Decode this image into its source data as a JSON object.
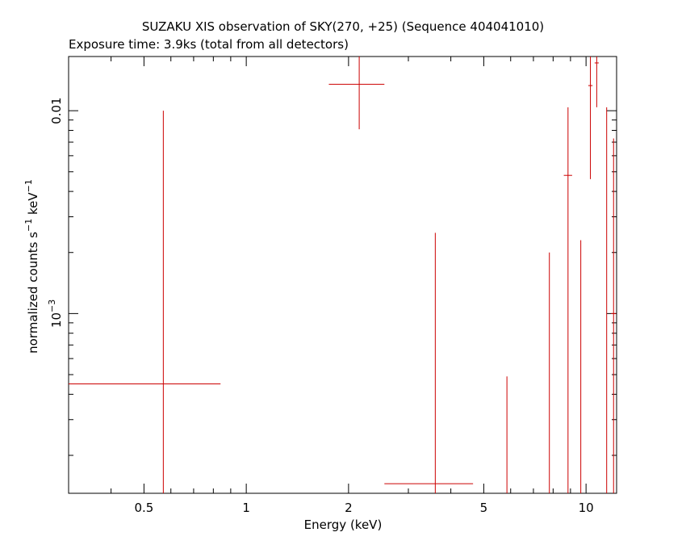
{
  "title": "SUZAKU XIS observation of SKY(270, +25) (Sequence 404041010)",
  "subtitle": "Exposure time: 3.9ks (total from all detectors)",
  "chart_data": {
    "type": "scatter",
    "xlabel": "Energy (keV)",
    "ylabel_main": "normalized counts s",
    "ylabel_exp1": "−1",
    "ylabel_mid": " keV",
    "ylabel_exp2": "−1",
    "xscale": "log",
    "yscale": "log",
    "xlim": [
      0.3,
      12.3
    ],
    "ylim": [
      0.00013,
      0.0185
    ],
    "x_major_ticks": [
      0.5,
      1,
      2,
      5,
      10
    ],
    "x_tick_labels": [
      "0.5",
      "1",
      "2",
      "5",
      "10"
    ],
    "x_minor_ticks": [
      0.3,
      0.4,
      0.6,
      0.7,
      0.8,
      0.9,
      3,
      4,
      6,
      7,
      8,
      9
    ],
    "y_major_ticks": [
      0.001,
      0.01
    ],
    "y_minor_ticks": [
      0.0002,
      0.0003,
      0.0004,
      0.0005,
      0.0006,
      0.0007,
      0.0008,
      0.0009,
      0.002,
      0.003,
      0.004,
      0.005,
      0.006,
      0.007,
      0.008,
      0.009
    ],
    "y_tick_label_1": "0.01",
    "y_tick_label_2_base": "10",
    "y_tick_label_2_exp": "−3",
    "series_color": "#cc0000",
    "points": [
      {
        "x": 0.57,
        "xlo": 0.3,
        "xhi": 0.84,
        "y": 0.00045,
        "ylo": 0.00013,
        "yhi": 0.01
      },
      {
        "x": 2.15,
        "xlo": 1.75,
        "xhi": 2.55,
        "y": 0.0135,
        "ylo": 0.0081,
        "yhi": 0.0185
      },
      {
        "x": 3.6,
        "xlo": 2.55,
        "xhi": 4.65,
        "y": 0.000145,
        "ylo": 0.00013,
        "yhi": 0.0025
      },
      {
        "x": 5.85,
        "xlo": 5.85,
        "xhi": 5.85,
        "y": 0.00013,
        "ylo": 0.00013,
        "yhi": 0.00049
      },
      {
        "x": 7.8,
        "xlo": 7.8,
        "xhi": 7.8,
        "y": 0.00013,
        "ylo": 0.00013,
        "yhi": 0.002
      },
      {
        "x": 8.85,
        "xlo": 8.6,
        "xhi": 9.1,
        "y": 0.0048,
        "ylo": 0.00013,
        "yhi": 0.0104
      },
      {
        "x": 9.65,
        "xlo": 9.65,
        "xhi": 9.65,
        "y": 0.00013,
        "ylo": 0.00013,
        "yhi": 0.0023
      },
      {
        "x": 10.3,
        "xlo": 10.15,
        "xhi": 10.45,
        "y": 0.0133,
        "ylo": 0.0046,
        "yhi": 0.0185
      },
      {
        "x": 10.75,
        "xlo": 10.6,
        "xhi": 10.9,
        "y": 0.0172,
        "ylo": 0.0104,
        "yhi": 0.0185
      },
      {
        "x": 11.5,
        "xlo": 11.5,
        "xhi": 11.5,
        "y": 0.00013,
        "ylo": 0.00013,
        "yhi": 0.0104
      },
      {
        "x": 12.05,
        "xlo": 11.85,
        "xhi": 12.25,
        "y": 0.001,
        "ylo": 0.00013,
        "yhi": 0.0073
      }
    ]
  }
}
